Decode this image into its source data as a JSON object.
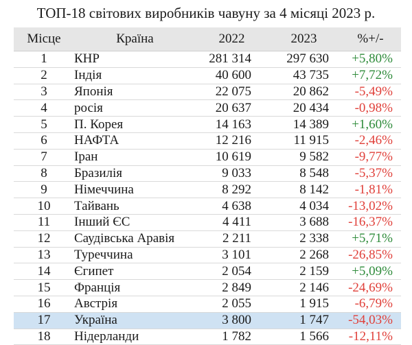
{
  "title": "ТОП-18 світових виробників чавуну за 4 місяці 2023 р.",
  "columns": {
    "rank": "Місце",
    "country": "Країна",
    "y2022": "2022",
    "y2023": "2023",
    "pct": "%+/-"
  },
  "rows": [
    {
      "rank": "1",
      "country": "КНР",
      "y2022": "281 314",
      "y2023": "297 630",
      "pct": "+5,80%",
      "sign": "pos"
    },
    {
      "rank": "2",
      "country": "Індія",
      "y2022": "40 600",
      "y2023": "43 735",
      "pct": "+7,72%",
      "sign": "pos"
    },
    {
      "rank": "3",
      "country": "Японія",
      "y2022": "22 075",
      "y2023": "20 862",
      "pct": "-5,49%",
      "sign": "neg"
    },
    {
      "rank": "4",
      "country": "росія",
      "y2022": "20 637",
      "y2023": "20 434",
      "pct": "-0,98%",
      "sign": "neg"
    },
    {
      "rank": "5",
      "country": "П. Корея",
      "y2022": "14 163",
      "y2023": "14 389",
      "pct": "+1,60%",
      "sign": "pos"
    },
    {
      "rank": "6",
      "country": "НАФТА",
      "y2022": "12 216",
      "y2023": "11 915",
      "pct": "-2,46%",
      "sign": "neg"
    },
    {
      "rank": "7",
      "country": "Іран",
      "y2022": "10 619",
      "y2023": "9 582",
      "pct": "-9,77%",
      "sign": "neg"
    },
    {
      "rank": "8",
      "country": "Бразилія",
      "y2022": "9 033",
      "y2023": "8 548",
      "pct": "-5,37%",
      "sign": "neg"
    },
    {
      "rank": "9",
      "country": "Німеччина",
      "y2022": "8 292",
      "y2023": "8 142",
      "pct": "-1,81%",
      "sign": "neg"
    },
    {
      "rank": "10",
      "country": "Тайвань",
      "y2022": "4 638",
      "y2023": "4 034",
      "pct": "-13,02%",
      "sign": "neg"
    },
    {
      "rank": "11",
      "country": "Інший ЄС",
      "y2022": "4 411",
      "y2023": "3 688",
      "pct": "-16,37%",
      "sign": "neg"
    },
    {
      "rank": "12",
      "country": "Саудівська Аравія",
      "y2022": "2 211",
      "y2023": "2 338",
      "pct": "+5,71%",
      "sign": "pos"
    },
    {
      "rank": "13",
      "country": "Туреччина",
      "y2022": "3 101",
      "y2023": "2 268",
      "pct": "-26,85%",
      "sign": "neg"
    },
    {
      "rank": "14",
      "country": "Єгипет",
      "y2022": "2 054",
      "y2023": "2 159",
      "pct": "+5,09%",
      "sign": "pos"
    },
    {
      "rank": "15",
      "country": "Франція",
      "y2022": "2 849",
      "y2023": "2 146",
      "pct": "-24,69%",
      "sign": "neg"
    },
    {
      "rank": "16",
      "country": "Австрія",
      "y2022": "2 055",
      "y2023": "1 915",
      "pct": "-6,79%",
      "sign": "neg"
    },
    {
      "rank": "17",
      "country": "Україна",
      "y2022": "3 800",
      "y2023": "1 747",
      "pct": "-54,03%",
      "sign": "neg",
      "highlight": true
    },
    {
      "rank": "18",
      "country": "Нідерланди",
      "y2022": "1 782",
      "y2023": "1 566",
      "pct": "-12,11%",
      "sign": "neg"
    }
  ],
  "colors": {
    "positive": "#2e8b3a",
    "negative": "#e0403a",
    "header_bg": "#e6e6e6",
    "highlight_bg": "#cfe2f3"
  }
}
